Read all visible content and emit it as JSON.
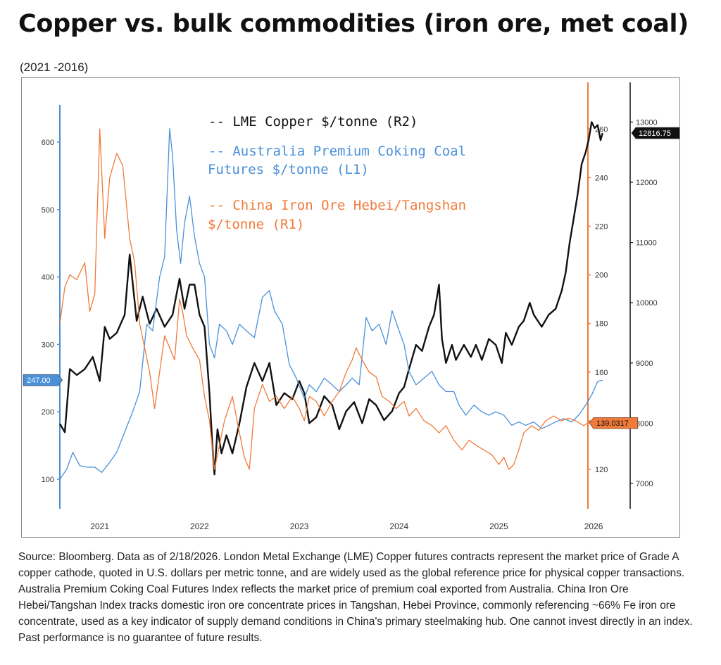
{
  "title": "Copper vs. bulk commodities (iron ore, met coal)",
  "subtitle": "(2021 -2016)",
  "source_note": "Source: Bloomberg. Data as of 2/18/2026. London Metal Exchange (LME) Copper futures contracts represent the market price of Grade A copper cathode, quoted in U.S. dollars per metric tonne, and are widely used as the global reference price for physical copper transactions. Australia Premium Coking Coal Futures Index reflects the market price of premium coal exported from Australia. China Iron Ore Hebei/Tangshan Index tracks domestic iron ore concentrate prices in Tangshan, Hebei Province, commonly referencing ~66% Fe iron ore concentrate, used as a key indicator of supply demand conditions in China's primary steelmaking hub. One cannot invest directly in an index. Past performance is no guarantee of future results.",
  "chart_data": {
    "type": "line",
    "legend_position": "top-center",
    "grid": false,
    "x_tick_labels": [
      "2021",
      "2022",
      "2023",
      "2024",
      "2025",
      "2026"
    ],
    "axes": {
      "L1": {
        "ticks": [
          "100",
          "200",
          "300",
          "400",
          "500",
          "600"
        ],
        "color": "#4a90d9"
      },
      "R1": {
        "ticks": [
          "120",
          "140",
          "160",
          "180",
          "200",
          "220",
          "240",
          "260"
        ],
        "color": "#f07a3a"
      },
      "R2": {
        "ticks": [
          "7000",
          "8000",
          "9000",
          "10000",
          "11000",
          "12000",
          "13000"
        ],
        "color": "#111111"
      }
    },
    "last_value_labels": {
      "L1": "247.00",
      "R1": "139.0317",
      "R2": "12816.75"
    },
    "series": [
      {
        "name": "-- LME Copper $/tonne (R2)",
        "axis": "R2",
        "color": "#111111",
        "points": [
          [
            2020.55,
            7990
          ],
          [
            2020.6,
            7850
          ],
          [
            2020.65,
            8900
          ],
          [
            2020.72,
            8800
          ],
          [
            2020.8,
            8900
          ],
          [
            2020.88,
            9100
          ],
          [
            2020.95,
            8700
          ],
          [
            2021.0,
            9600
          ],
          [
            2021.05,
            9400
          ],
          [
            2021.12,
            9500
          ],
          [
            2021.2,
            9800
          ],
          [
            2021.25,
            10800
          ],
          [
            2021.32,
            9700
          ],
          [
            2021.38,
            10100
          ],
          [
            2021.45,
            9650
          ],
          [
            2021.52,
            9900
          ],
          [
            2021.6,
            9600
          ],
          [
            2021.68,
            9800
          ],
          [
            2021.75,
            10400
          ],
          [
            2021.8,
            9900
          ],
          [
            2021.85,
            10300
          ],
          [
            2021.9,
            10300
          ],
          [
            2021.95,
            9800
          ],
          [
            2022.0,
            9600
          ],
          [
            2022.05,
            8500
          ],
          [
            2022.08,
            7600
          ],
          [
            2022.1,
            7150
          ],
          [
            2022.13,
            7900
          ],
          [
            2022.17,
            7500
          ],
          [
            2022.22,
            7800
          ],
          [
            2022.28,
            7500
          ],
          [
            2022.35,
            8000
          ],
          [
            2022.42,
            8600
          ],
          [
            2022.5,
            9000
          ],
          [
            2022.58,
            8700
          ],
          [
            2022.65,
            9000
          ],
          [
            2022.72,
            8300
          ],
          [
            2022.8,
            8500
          ],
          [
            2022.88,
            8400
          ],
          [
            2022.95,
            8700
          ],
          [
            2023.0,
            8500
          ],
          [
            2023.05,
            8000
          ],
          [
            2023.12,
            8100
          ],
          [
            2023.2,
            8450
          ],
          [
            2023.28,
            8300
          ],
          [
            2023.35,
            7900
          ],
          [
            2023.42,
            8200
          ],
          [
            2023.5,
            8350
          ],
          [
            2023.58,
            8000
          ],
          [
            2023.65,
            8400
          ],
          [
            2023.72,
            8300
          ],
          [
            2023.8,
            8050
          ],
          [
            2023.88,
            8200
          ],
          [
            2023.95,
            8500
          ],
          [
            2024.0,
            8600
          ],
          [
            2024.05,
            8900
          ],
          [
            2024.12,
            9300
          ],
          [
            2024.18,
            9200
          ],
          [
            2024.25,
            9600
          ],
          [
            2024.3,
            9800
          ],
          [
            2024.35,
            10300
          ],
          [
            2024.38,
            9400
          ],
          [
            2024.42,
            9000
          ],
          [
            2024.48,
            9300
          ],
          [
            2024.52,
            9050
          ],
          [
            2024.6,
            9300
          ],
          [
            2024.67,
            9100
          ],
          [
            2024.72,
            9300
          ],
          [
            2024.78,
            9050
          ],
          [
            2024.85,
            9400
          ],
          [
            2024.92,
            9300
          ],
          [
            2024.98,
            9000
          ],
          [
            2025.02,
            9500
          ],
          [
            2025.08,
            9300
          ],
          [
            2025.15,
            9600
          ],
          [
            2025.2,
            9700
          ],
          [
            2025.26,
            10000
          ],
          [
            2025.3,
            9800
          ],
          [
            2025.38,
            9600
          ],
          [
            2025.45,
            9800
          ],
          [
            2025.52,
            9900
          ],
          [
            2025.58,
            10200
          ],
          [
            2025.62,
            10500
          ],
          [
            2025.66,
            11000
          ],
          [
            2025.7,
            11400
          ],
          [
            2025.74,
            11800
          ],
          [
            2025.78,
            12300
          ],
          [
            2025.82,
            12500
          ],
          [
            2025.85,
            12700
          ],
          [
            2025.88,
            13000
          ],
          [
            2025.91,
            12900
          ],
          [
            2025.94,
            12950
          ],
          [
            2025.97,
            12700
          ],
          [
            2025.99,
            12816.75
          ]
        ]
      },
      {
        "name": "-- Australia Premium Coking Coal Futures $/tonne (L1)",
        "axis": "L1",
        "color": "#4a90d9",
        "points": [
          [
            2020.55,
            100
          ],
          [
            2020.62,
            115
          ],
          [
            2020.68,
            140
          ],
          [
            2020.75,
            120
          ],
          [
            2020.82,
            118
          ],
          [
            2020.9,
            118
          ],
          [
            2020.97,
            110
          ],
          [
            2021.05,
            125
          ],
          [
            2021.12,
            140
          ],
          [
            2021.2,
            170
          ],
          [
            2021.28,
            200
          ],
          [
            2021.35,
            230
          ],
          [
            2021.42,
            330
          ],
          [
            2021.48,
            320
          ],
          [
            2021.55,
            400
          ],
          [
            2021.6,
            430
          ],
          [
            2021.65,
            620
          ],
          [
            2021.68,
            580
          ],
          [
            2021.72,
            470
          ],
          [
            2021.76,
            420
          ],
          [
            2021.8,
            480
          ],
          [
            2021.85,
            520
          ],
          [
            2021.9,
            460
          ],
          [
            2021.95,
            420
          ],
          [
            2022.0,
            400
          ],
          [
            2022.05,
            300
          ],
          [
            2022.1,
            280
          ],
          [
            2022.15,
            330
          ],
          [
            2022.22,
            320
          ],
          [
            2022.28,
            300
          ],
          [
            2022.35,
            330
          ],
          [
            2022.42,
            320
          ],
          [
            2022.5,
            310
          ],
          [
            2022.58,
            370
          ],
          [
            2022.65,
            380
          ],
          [
            2022.7,
            350
          ],
          [
            2022.78,
            330
          ],
          [
            2022.85,
            270
          ],
          [
            2022.92,
            250
          ],
          [
            2023.0,
            220
          ],
          [
            2023.05,
            240
          ],
          [
            2023.12,
            230
          ],
          [
            2023.2,
            250
          ],
          [
            2023.28,
            240
          ],
          [
            2023.35,
            230
          ],
          [
            2023.42,
            240
          ],
          [
            2023.48,
            250
          ],
          [
            2023.55,
            240
          ],
          [
            2023.62,
            340
          ],
          [
            2023.68,
            320
          ],
          [
            2023.75,
            330
          ],
          [
            2023.82,
            300
          ],
          [
            2023.88,
            350
          ],
          [
            2023.95,
            320
          ],
          [
            2024.0,
            300
          ],
          [
            2024.05,
            260
          ],
          [
            2024.12,
            240
          ],
          [
            2024.2,
            250
          ],
          [
            2024.28,
            260
          ],
          [
            2024.35,
            240
          ],
          [
            2024.42,
            230
          ],
          [
            2024.5,
            230
          ],
          [
            2024.55,
            210
          ],
          [
            2024.62,
            195
          ],
          [
            2024.7,
            210
          ],
          [
            2024.78,
            200
          ],
          [
            2024.85,
            195
          ],
          [
            2024.92,
            200
          ],
          [
            2025.0,
            195
          ],
          [
            2025.08,
            180
          ],
          [
            2025.15,
            185
          ],
          [
            2025.22,
            180
          ],
          [
            2025.3,
            185
          ],
          [
            2025.38,
            175
          ],
          [
            2025.45,
            180
          ],
          [
            2025.52,
            185
          ],
          [
            2025.6,
            190
          ],
          [
            2025.68,
            185
          ],
          [
            2025.75,
            195
          ],
          [
            2025.82,
            210
          ],
          [
            2025.88,
            225
          ],
          [
            2025.94,
            245
          ],
          [
            2025.99,
            247
          ]
        ]
      },
      {
        "name": "-- China Iron Ore Hebei/Tangshan $/tonne (R1)",
        "axis": "R1",
        "color": "#f07a3a",
        "points": [
          [
            2020.55,
            180
          ],
          [
            2020.6,
            195
          ],
          [
            2020.65,
            200
          ],
          [
            2020.72,
            198
          ],
          [
            2020.8,
            205
          ],
          [
            2020.85,
            185
          ],
          [
            2020.9,
            192
          ],
          [
            2020.95,
            260
          ],
          [
            2021.0,
            215
          ],
          [
            2021.05,
            240
          ],
          [
            2021.12,
            250
          ],
          [
            2021.18,
            245
          ],
          [
            2021.25,
            215
          ],
          [
            2021.3,
            205
          ],
          [
            2021.35,
            180
          ],
          [
            2021.4,
            170
          ],
          [
            2021.45,
            160
          ],
          [
            2021.5,
            145
          ],
          [
            2021.55,
            160
          ],
          [
            2021.6,
            175
          ],
          [
            2021.65,
            170
          ],
          [
            2021.7,
            165
          ],
          [
            2021.75,
            190
          ],
          [
            2021.78,
            185
          ],
          [
            2021.82,
            175
          ],
          [
            2021.88,
            170
          ],
          [
            2021.95,
            165
          ],
          [
            2022.0,
            150
          ],
          [
            2022.05,
            140
          ],
          [
            2022.1,
            120
          ],
          [
            2022.15,
            130
          ],
          [
            2022.2,
            140
          ],
          [
            2022.28,
            150
          ],
          [
            2022.35,
            135
          ],
          [
            2022.4,
            125
          ],
          [
            2022.45,
            120
          ],
          [
            2022.5,
            145
          ],
          [
            2022.58,
            155
          ],
          [
            2022.65,
            148
          ],
          [
            2022.72,
            150
          ],
          [
            2022.8,
            145
          ],
          [
            2022.88,
            150
          ],
          [
            2022.95,
            145
          ],
          [
            2023.0,
            140
          ],
          [
            2023.05,
            150
          ],
          [
            2023.12,
            148
          ],
          [
            2023.2,
            142
          ],
          [
            2023.28,
            148
          ],
          [
            2023.35,
            152
          ],
          [
            2023.42,
            160
          ],
          [
            2023.48,
            165
          ],
          [
            2023.52,
            170
          ],
          [
            2023.58,
            165
          ],
          [
            2023.65,
            160
          ],
          [
            2023.72,
            158
          ],
          [
            2023.78,
            150
          ],
          [
            2023.85,
            148
          ],
          [
            2023.92,
            145
          ],
          [
            2024.0,
            148
          ],
          [
            2024.05,
            142
          ],
          [
            2024.12,
            145
          ],
          [
            2024.2,
            140
          ],
          [
            2024.28,
            138
          ],
          [
            2024.35,
            135
          ],
          [
            2024.42,
            138
          ],
          [
            2024.5,
            132
          ],
          [
            2024.58,
            128
          ],
          [
            2024.65,
            132
          ],
          [
            2024.72,
            130
          ],
          [
            2024.8,
            128
          ],
          [
            2024.88,
            126
          ],
          [
            2024.95,
            122
          ],
          [
            2025.0,
            125
          ],
          [
            2025.05,
            120
          ],
          [
            2025.1,
            122
          ],
          [
            2025.15,
            128
          ],
          [
            2025.2,
            135
          ],
          [
            2025.28,
            138
          ],
          [
            2025.35,
            136
          ],
          [
            2025.42,
            140
          ],
          [
            2025.5,
            142
          ],
          [
            2025.58,
            140
          ],
          [
            2025.65,
            141
          ],
          [
            2025.72,
            140
          ],
          [
            2025.8,
            138
          ],
          [
            2025.88,
            140
          ],
          [
            2025.94,
            139
          ],
          [
            2025.99,
            139.0317
          ]
        ]
      }
    ],
    "legend_lines": [
      {
        "text": "-- LME Copper $/tonne (R2)",
        "color": "#111111"
      },
      {
        "text": "-- Australia Premium Coking Coal",
        "color": "#4a90d9"
      },
      {
        "text": "Futures $/tonne (L1)",
        "color": "#4a90d9"
      },
      {
        "text": "-- China Iron Ore Hebei/Tangshan",
        "color": "#f07a3a"
      },
      {
        "text": "$/tonne (R1)",
        "color": "#f07a3a"
      }
    ]
  }
}
